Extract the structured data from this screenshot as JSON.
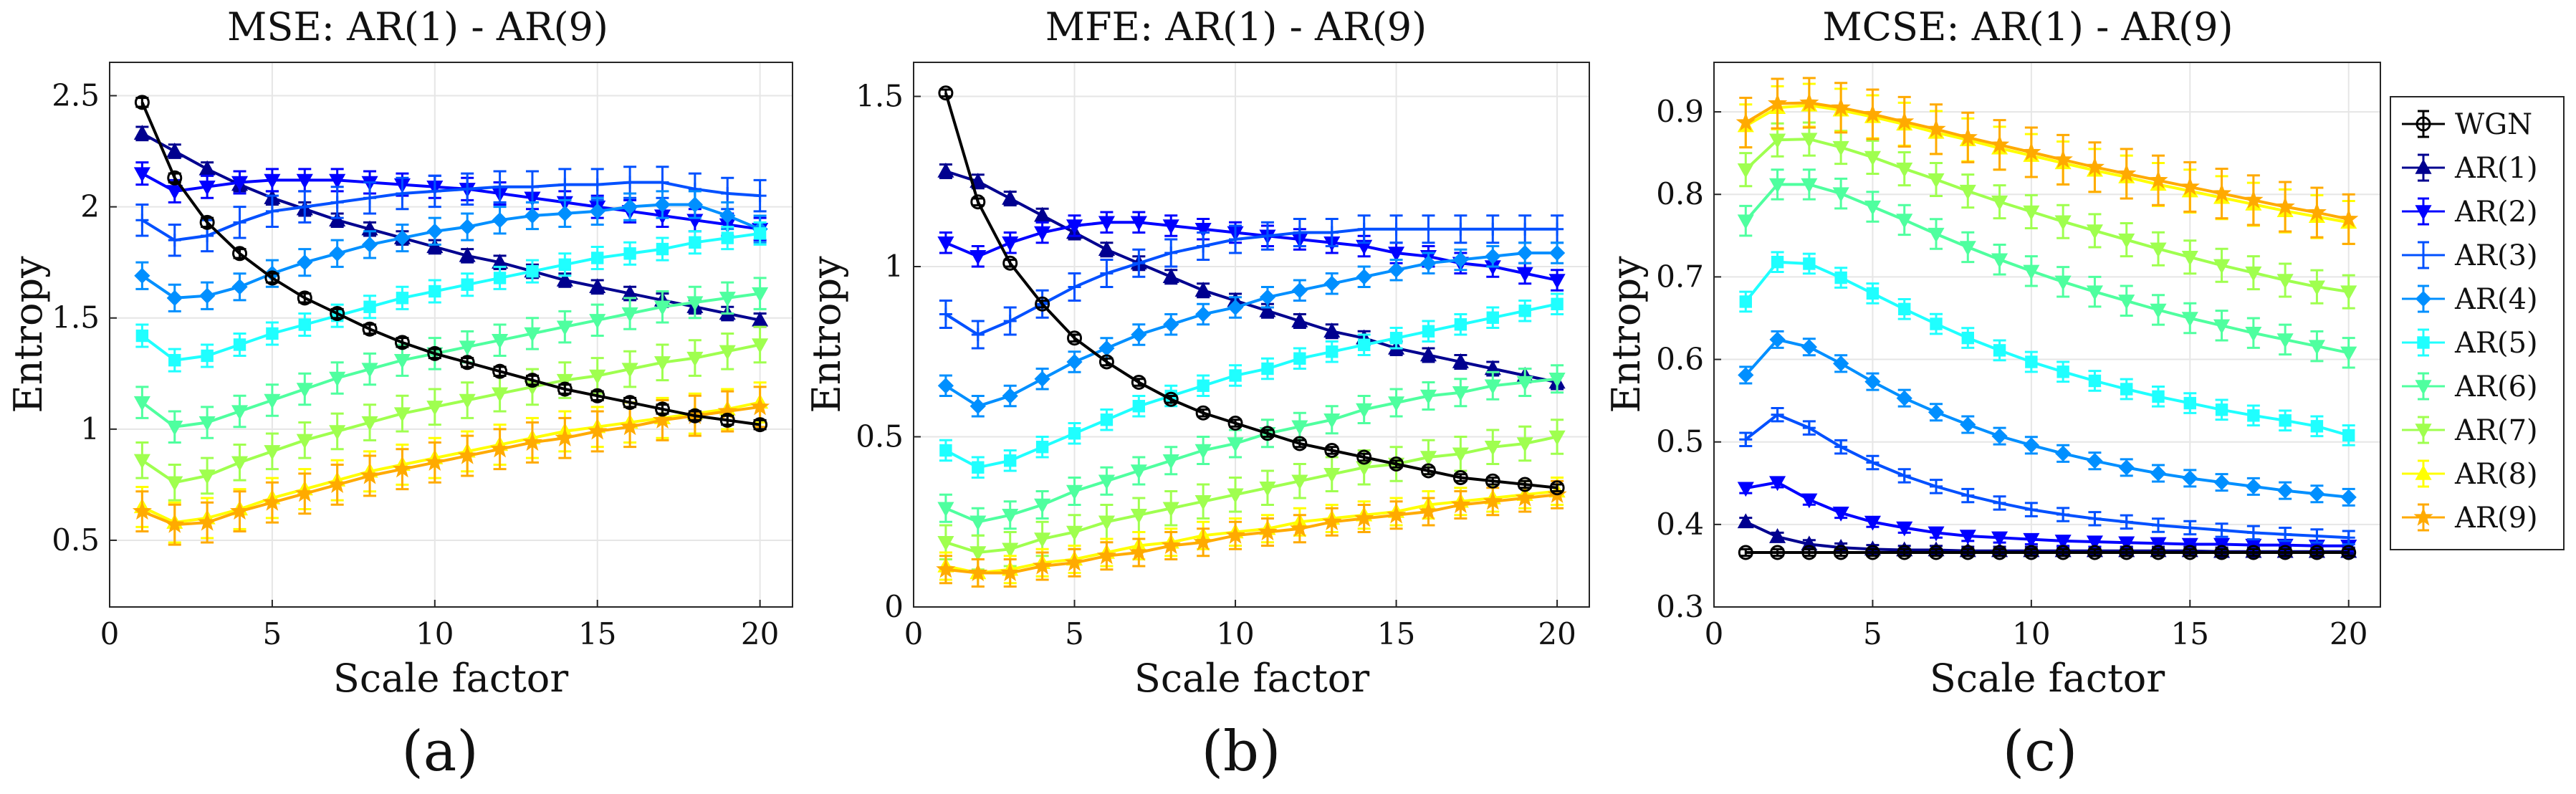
{
  "figure": {
    "panel_letters": [
      "(a)",
      "(b)",
      "(c)"
    ]
  },
  "legend": {
    "entries": [
      {
        "name": "WGN",
        "color": "#000000",
        "marker": "circle"
      },
      {
        "name": "AR(1)",
        "color": "#00008f",
        "marker": "triangle-up"
      },
      {
        "name": "AR(2)",
        "color": "#0000ff",
        "marker": "triangle-down"
      },
      {
        "name": "AR(3)",
        "color": "#0050ff",
        "marker": "cross"
      },
      {
        "name": "AR(4)",
        "color": "#008fff",
        "marker": "diamond"
      },
      {
        "name": "AR(5)",
        "color": "#1fffff",
        "marker": "square"
      },
      {
        "name": "AR(6)",
        "color": "#4fff9f",
        "marker": "triangle-down"
      },
      {
        "name": "AR(7)",
        "color": "#9fff4f",
        "marker": "triangle-down"
      },
      {
        "name": "AR(8)",
        "color": "#ffff00",
        "marker": "triangle-up"
      },
      {
        "name": "AR(9)",
        "color": "#ffaa00",
        "marker": "star"
      }
    ]
  },
  "chart_data": [
    {
      "type": "line",
      "title": "MSE: AR(1) - AR(9)",
      "xlabel": "Scale factor",
      "ylabel": "Entropy",
      "xlim": [
        0,
        21
      ],
      "ylim": [
        0.2,
        2.65
      ],
      "xticks": [
        0,
        5,
        10,
        15,
        20
      ],
      "yticks": [
        0.5,
        1,
        1.5,
        2,
        2.5
      ],
      "ytick_labels": [
        "0.5",
        "1",
        "1.5",
        "2",
        "2.5"
      ],
      "grid": true,
      "x": [
        1,
        2,
        3,
        4,
        5,
        6,
        7,
        8,
        9,
        10,
        11,
        12,
        13,
        14,
        15,
        16,
        17,
        18,
        19,
        20
      ],
      "series": [
        {
          "name": "WGN",
          "err": 0.02,
          "values": [
            2.47,
            2.13,
            1.93,
            1.79,
            1.68,
            1.59,
            1.52,
            1.45,
            1.39,
            1.34,
            1.3,
            1.26,
            1.22,
            1.18,
            1.15,
            1.12,
            1.09,
            1.06,
            1.04,
            1.02
          ]
        },
        {
          "name": "AR(1)",
          "err": 0.03,
          "values": [
            2.33,
            2.25,
            2.17,
            2.1,
            2.04,
            1.99,
            1.94,
            1.9,
            1.86,
            1.82,
            1.78,
            1.75,
            1.71,
            1.67,
            1.64,
            1.61,
            1.58,
            1.55,
            1.52,
            1.49
          ]
        },
        {
          "name": "AR(2)",
          "err": 0.05,
          "values": [
            2.15,
            2.07,
            2.09,
            2.11,
            2.12,
            2.12,
            2.12,
            2.11,
            2.1,
            2.09,
            2.08,
            2.06,
            2.04,
            2.02,
            2.0,
            1.98,
            1.96,
            1.94,
            1.92,
            1.9
          ]
        },
        {
          "name": "AR(3)",
          "err": 0.07,
          "values": [
            1.94,
            1.85,
            1.87,
            1.93,
            1.98,
            2.0,
            2.02,
            2.04,
            2.06,
            2.07,
            2.08,
            2.09,
            2.09,
            2.1,
            2.1,
            2.11,
            2.11,
            2.08,
            2.06,
            2.05
          ]
        },
        {
          "name": "AR(4)",
          "err": 0.06,
          "values": [
            1.69,
            1.59,
            1.6,
            1.64,
            1.7,
            1.75,
            1.79,
            1.83,
            1.86,
            1.89,
            1.91,
            1.94,
            1.96,
            1.97,
            1.98,
            2.0,
            2.01,
            2.01,
            1.96,
            1.9
          ]
        },
        {
          "name": "AR(5)",
          "err": 0.05,
          "values": [
            1.42,
            1.31,
            1.33,
            1.38,
            1.43,
            1.47,
            1.51,
            1.55,
            1.59,
            1.62,
            1.65,
            1.68,
            1.71,
            1.74,
            1.77,
            1.79,
            1.81,
            1.84,
            1.86,
            1.88
          ]
        },
        {
          "name": "AR(6)",
          "err": 0.07,
          "values": [
            1.12,
            1.01,
            1.03,
            1.08,
            1.13,
            1.18,
            1.23,
            1.27,
            1.31,
            1.34,
            1.37,
            1.4,
            1.43,
            1.46,
            1.49,
            1.52,
            1.55,
            1.57,
            1.59,
            1.61
          ]
        },
        {
          "name": "AR(7)",
          "err": 0.08,
          "values": [
            0.86,
            0.76,
            0.79,
            0.85,
            0.9,
            0.95,
            0.99,
            1.03,
            1.07,
            1.1,
            1.13,
            1.16,
            1.19,
            1.22,
            1.24,
            1.27,
            1.3,
            1.32,
            1.35,
            1.38
          ]
        },
        {
          "name": "AR(8)",
          "err": 0.09,
          "values": [
            0.65,
            0.58,
            0.6,
            0.64,
            0.69,
            0.73,
            0.77,
            0.81,
            0.84,
            0.87,
            0.9,
            0.93,
            0.96,
            0.99,
            1.01,
            1.03,
            1.05,
            1.07,
            1.09,
            1.12
          ]
        },
        {
          "name": "AR(9)",
          "err": 0.09,
          "values": [
            0.63,
            0.57,
            0.58,
            0.63,
            0.67,
            0.71,
            0.75,
            0.79,
            0.82,
            0.85,
            0.88,
            0.91,
            0.94,
            0.96,
            0.99,
            1.01,
            1.04,
            1.06,
            1.08,
            1.1
          ]
        }
      ]
    },
    {
      "type": "line",
      "title": "MFE: AR(1) - AR(9)",
      "xlabel": "Scale factor",
      "ylabel": "Entropy",
      "xlim": [
        0,
        21
      ],
      "ylim": [
        0,
        1.6
      ],
      "xticks": [
        0,
        5,
        10,
        15,
        20
      ],
      "yticks": [
        0,
        0.5,
        1,
        1.5
      ],
      "ytick_labels": [
        "0",
        "0.5",
        "1",
        "1.5"
      ],
      "grid": true,
      "x": [
        1,
        2,
        3,
        4,
        5,
        6,
        7,
        8,
        9,
        10,
        11,
        12,
        13,
        14,
        15,
        16,
        17,
        18,
        19,
        20
      ],
      "series": [
        {
          "name": "WGN",
          "err": 0.01,
          "values": [
            1.51,
            1.19,
            1.01,
            0.89,
            0.79,
            0.72,
            0.66,
            0.61,
            0.57,
            0.54,
            0.51,
            0.48,
            0.46,
            0.44,
            0.42,
            0.4,
            0.38,
            0.37,
            0.36,
            0.35
          ]
        },
        {
          "name": "AR(1)",
          "err": 0.02,
          "values": [
            1.28,
            1.25,
            1.2,
            1.15,
            1.1,
            1.05,
            1.01,
            0.97,
            0.93,
            0.9,
            0.87,
            0.84,
            0.81,
            0.79,
            0.76,
            0.74,
            0.72,
            0.7,
            0.68,
            0.66
          ]
        },
        {
          "name": "AR(2)",
          "err": 0.03,
          "values": [
            1.07,
            1.03,
            1.07,
            1.1,
            1.12,
            1.13,
            1.13,
            1.12,
            1.11,
            1.1,
            1.09,
            1.08,
            1.07,
            1.06,
            1.04,
            1.03,
            1.01,
            1.0,
            0.98,
            0.96
          ]
        },
        {
          "name": "AR(3)",
          "err": 0.04,
          "values": [
            0.86,
            0.8,
            0.84,
            0.89,
            0.94,
            0.98,
            1.01,
            1.04,
            1.06,
            1.08,
            1.09,
            1.1,
            1.1,
            1.11,
            1.11,
            1.11,
            1.11,
            1.11,
            1.11,
            1.11
          ]
        },
        {
          "name": "AR(4)",
          "err": 0.03,
          "values": [
            0.65,
            0.59,
            0.62,
            0.67,
            0.72,
            0.76,
            0.8,
            0.83,
            0.86,
            0.88,
            0.91,
            0.93,
            0.95,
            0.97,
            0.99,
            1.01,
            1.02,
            1.03,
            1.04,
            1.04
          ]
        },
        {
          "name": "AR(5)",
          "err": 0.03,
          "values": [
            0.46,
            0.41,
            0.43,
            0.47,
            0.51,
            0.55,
            0.59,
            0.62,
            0.65,
            0.68,
            0.7,
            0.73,
            0.75,
            0.77,
            0.79,
            0.81,
            0.83,
            0.85,
            0.87,
            0.89
          ]
        },
        {
          "name": "AR(6)",
          "err": 0.04,
          "values": [
            0.29,
            0.25,
            0.27,
            0.3,
            0.34,
            0.37,
            0.4,
            0.43,
            0.46,
            0.48,
            0.51,
            0.53,
            0.55,
            0.58,
            0.6,
            0.62,
            0.63,
            0.65,
            0.66,
            0.67
          ]
        },
        {
          "name": "AR(7)",
          "err": 0.05,
          "values": [
            0.19,
            0.16,
            0.17,
            0.2,
            0.22,
            0.25,
            0.27,
            0.29,
            0.31,
            0.33,
            0.35,
            0.37,
            0.39,
            0.41,
            0.42,
            0.44,
            0.45,
            0.47,
            0.48,
            0.5
          ]
        },
        {
          "name": "AR(8)",
          "err": 0.04,
          "values": [
            0.12,
            0.1,
            0.11,
            0.13,
            0.14,
            0.16,
            0.18,
            0.19,
            0.21,
            0.22,
            0.23,
            0.25,
            0.26,
            0.27,
            0.28,
            0.3,
            0.31,
            0.32,
            0.33,
            0.34
          ]
        },
        {
          "name": "AR(9)",
          "err": 0.04,
          "values": [
            0.11,
            0.1,
            0.1,
            0.12,
            0.13,
            0.15,
            0.16,
            0.18,
            0.19,
            0.21,
            0.22,
            0.23,
            0.25,
            0.26,
            0.27,
            0.28,
            0.3,
            0.31,
            0.32,
            0.33
          ]
        }
      ]
    },
    {
      "type": "line",
      "title": "MCSE: AR(1) - AR(9)",
      "xlabel": "Scale factor",
      "ylabel": "Entropy",
      "xlim": [
        0,
        21
      ],
      "ylim": [
        0.3,
        0.96
      ],
      "xticks": [
        0,
        5,
        10,
        15,
        20
      ],
      "yticks": [
        0.3,
        0.4,
        0.5,
        0.6,
        0.7,
        0.8,
        0.9
      ],
      "ytick_labels": [
        "0.3",
        "0.4",
        "0.5",
        "0.6",
        "0.7",
        "0.8",
        "0.9"
      ],
      "grid": true,
      "x": [
        1,
        2,
        3,
        4,
        5,
        6,
        7,
        8,
        9,
        10,
        11,
        12,
        13,
        14,
        15,
        16,
        17,
        18,
        19,
        20
      ],
      "series": [
        {
          "name": "WGN",
          "err": 0.004,
          "values": [
            0.366,
            0.366,
            0.366,
            0.366,
            0.366,
            0.366,
            0.366,
            0.366,
            0.366,
            0.366,
            0.366,
            0.366,
            0.366,
            0.366,
            0.366,
            0.366,
            0.366,
            0.366,
            0.366,
            0.366
          ]
        },
        {
          "name": "AR(1)",
          "err": 0.005,
          "values": [
            0.403,
            0.385,
            0.376,
            0.372,
            0.37,
            0.369,
            0.369,
            0.368,
            0.368,
            0.368,
            0.368,
            0.368,
            0.368,
            0.368,
            0.368,
            0.367,
            0.367,
            0.367,
            0.367,
            0.367
          ]
        },
        {
          "name": "AR(2)",
          "err": 0.006,
          "values": [
            0.444,
            0.451,
            0.43,
            0.414,
            0.403,
            0.396,
            0.39,
            0.386,
            0.384,
            0.382,
            0.38,
            0.379,
            0.378,
            0.377,
            0.376,
            0.376,
            0.375,
            0.375,
            0.374,
            0.374
          ]
        },
        {
          "name": "AR(3)",
          "err": 0.008,
          "values": [
            0.503,
            0.533,
            0.517,
            0.494,
            0.475,
            0.459,
            0.446,
            0.435,
            0.426,
            0.418,
            0.412,
            0.407,
            0.403,
            0.399,
            0.396,
            0.393,
            0.39,
            0.388,
            0.386,
            0.384
          ]
        },
        {
          "name": "AR(4)",
          "err": 0.01,
          "values": [
            0.581,
            0.624,
            0.615,
            0.595,
            0.573,
            0.553,
            0.536,
            0.521,
            0.507,
            0.496,
            0.486,
            0.477,
            0.469,
            0.462,
            0.456,
            0.451,
            0.446,
            0.441,
            0.437,
            0.433
          ]
        },
        {
          "name": "AR(5)",
          "err": 0.012,
          "values": [
            0.67,
            0.718,
            0.716,
            0.699,
            0.68,
            0.661,
            0.643,
            0.626,
            0.611,
            0.597,
            0.585,
            0.574,
            0.564,
            0.555,
            0.547,
            0.539,
            0.532,
            0.526,
            0.519,
            0.508
          ]
        },
        {
          "name": "AR(6)",
          "err": 0.018,
          "values": [
            0.768,
            0.812,
            0.812,
            0.801,
            0.785,
            0.769,
            0.752,
            0.736,
            0.721,
            0.707,
            0.694,
            0.682,
            0.671,
            0.66,
            0.65,
            0.641,
            0.632,
            0.624,
            0.616,
            0.608
          ]
        },
        {
          "name": "AR(7)",
          "err": 0.02,
          "values": [
            0.83,
            0.866,
            0.867,
            0.857,
            0.845,
            0.831,
            0.818,
            0.804,
            0.791,
            0.779,
            0.767,
            0.756,
            0.745,
            0.734,
            0.724,
            0.714,
            0.705,
            0.696,
            0.688,
            0.682
          ]
        },
        {
          "name": "AR(8)",
          "err": 0.026,
          "values": [
            0.883,
            0.905,
            0.908,
            0.902,
            0.894,
            0.885,
            0.875,
            0.866,
            0.856,
            0.847,
            0.838,
            0.829,
            0.821,
            0.812,
            0.804,
            0.796,
            0.788,
            0.78,
            0.773,
            0.766
          ]
        },
        {
          "name": "AR(9)",
          "err": 0.03,
          "values": [
            0.887,
            0.91,
            0.911,
            0.905,
            0.897,
            0.888,
            0.879,
            0.869,
            0.86,
            0.851,
            0.842,
            0.833,
            0.825,
            0.817,
            0.809,
            0.801,
            0.793,
            0.785,
            0.778,
            0.77
          ]
        }
      ]
    }
  ]
}
